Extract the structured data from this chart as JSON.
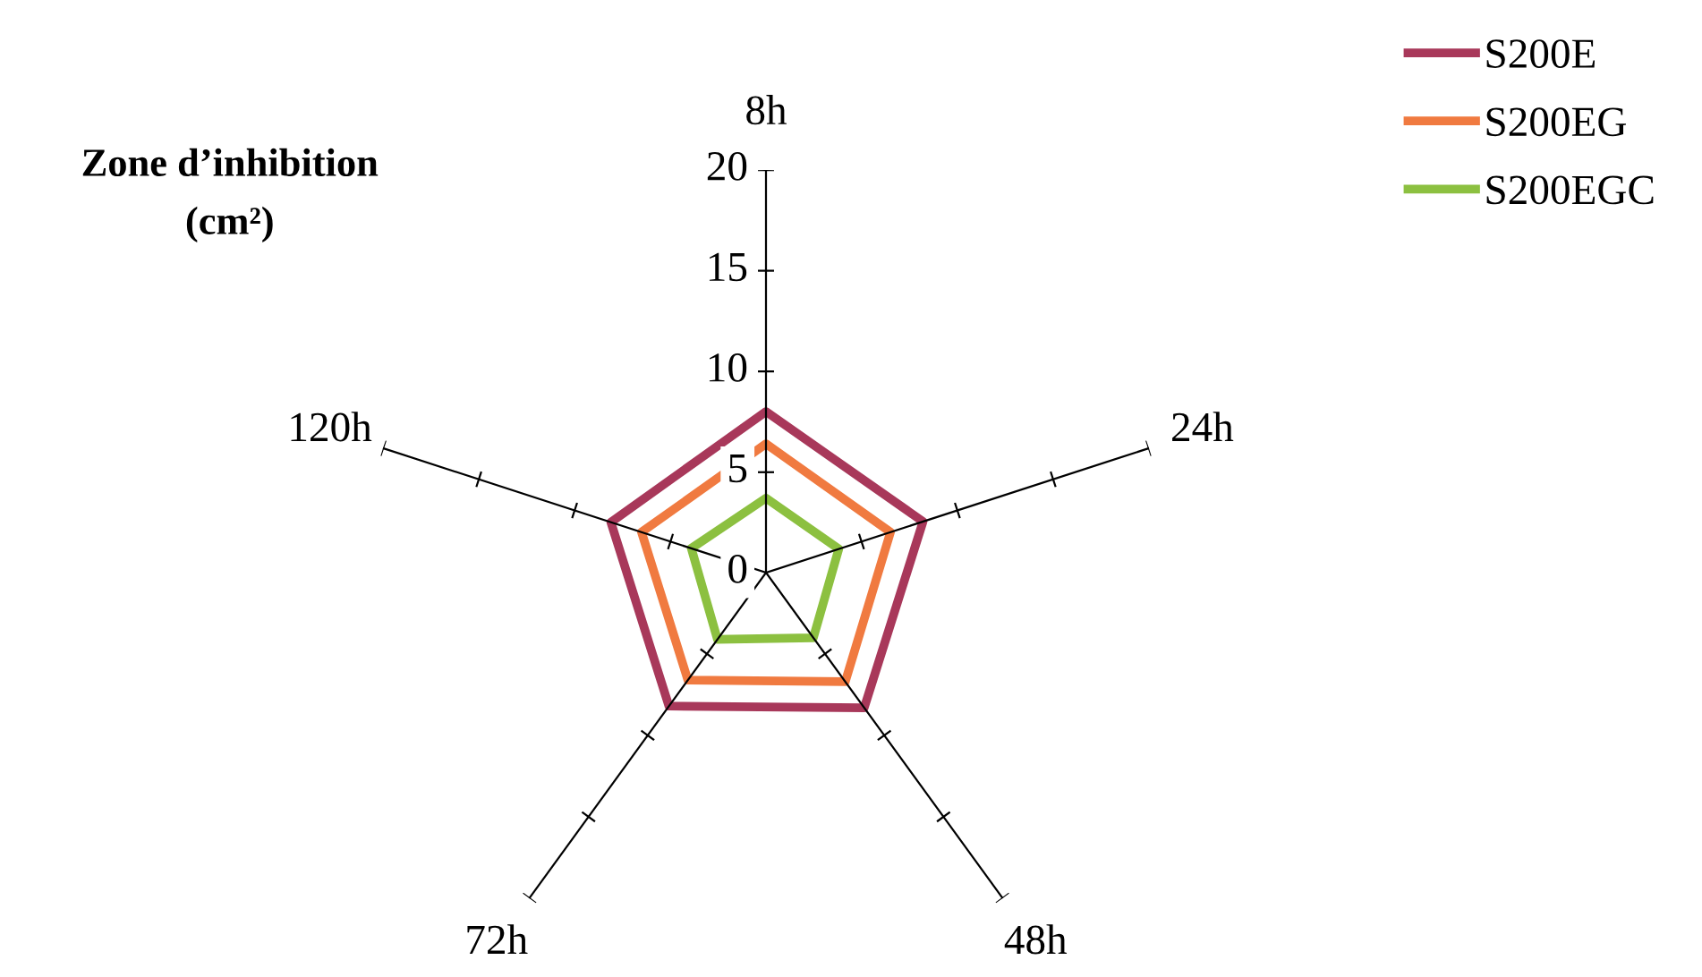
{
  "chart_data": {
    "type": "radar",
    "ylabel": "Zone d’inhibition\n(cm²)",
    "categories": [
      "8h",
      "24h",
      "48h",
      "72h",
      "120h"
    ],
    "series": [
      {
        "name": "S200E",
        "color": "#a8385a",
        "values": [
          8.0,
          8.2,
          8.3,
          8.2,
          8.1
        ]
      },
      {
        "name": "S200EG",
        "color": "#f07a40",
        "values": [
          6.4,
          6.5,
          6.7,
          6.6,
          6.5
        ]
      },
      {
        "name": "S200EGC",
        "color": "#8cc040",
        "values": [
          3.7,
          3.8,
          4.0,
          4.1,
          3.9
        ]
      }
    ],
    "ylim": [
      0,
      20
    ],
    "yticks": [
      0,
      5,
      10,
      15,
      20
    ],
    "legend": "top right",
    "line_style": "solid"
  }
}
